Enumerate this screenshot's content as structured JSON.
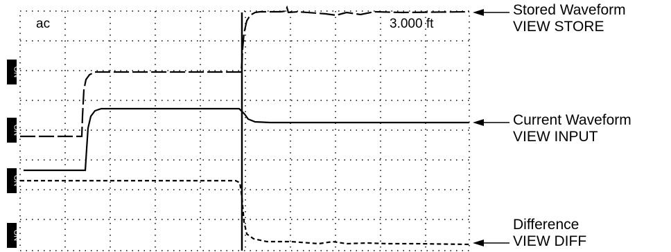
{
  "display": {
    "mode_label": "ac",
    "distance_readout": "3.000 ft"
  },
  "channels": [
    {
      "marker": "ON"
    },
    {
      "marker": "ON"
    },
    {
      "marker": "ON"
    },
    {
      "marker": "ON"
    }
  ],
  "callouts": {
    "stored": {
      "line1": "Stored Waveform",
      "line2": "VIEW STORE"
    },
    "current": {
      "line1": "Current Waveform",
      "line2": "VIEW INPUT"
    },
    "difference": {
      "line1": "Difference",
      "line2": "VIEW DIFF"
    }
  },
  "waveforms": [
    {
      "name": "stored",
      "style": "long-dash",
      "color": "#000000"
    },
    {
      "name": "current",
      "style": "solid",
      "color": "#000000"
    },
    {
      "name": "difference",
      "style": "short-dash",
      "color": "#000000"
    }
  ]
}
